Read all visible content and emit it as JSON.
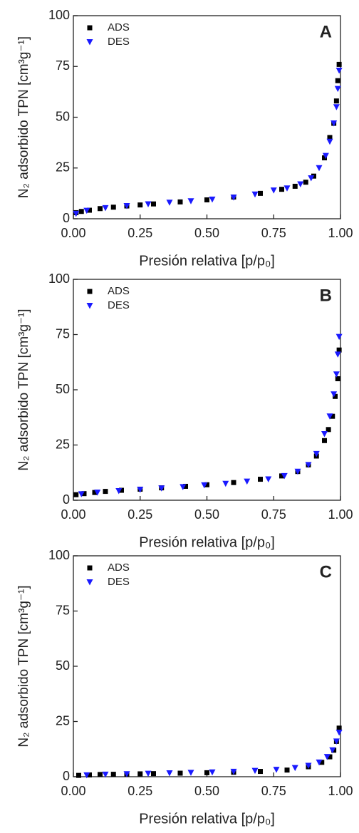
{
  "chart_data": [
    {
      "type": "scatter",
      "panel_label": "A",
      "x_label": "Presión relativa [p/p₀]",
      "y_label": "N₂ adsorbido TPN [cm³g⁻¹]",
      "xlim": [
        0,
        1
      ],
      "ylim": [
        0,
        100
      ],
      "xticks": [
        {
          "value": 0,
          "label": "0.00"
        },
        {
          "value": 0.25,
          "label": "0.25"
        },
        {
          "value": 0.5,
          "label": "0.50"
        },
        {
          "value": 0.75,
          "label": "0.75"
        },
        {
          "value": 1,
          "label": "1.00"
        }
      ],
      "yticks": [
        0,
        25,
        50,
        75,
        100
      ],
      "series": [
        {
          "name": "ADS",
          "color": "#000000",
          "marker": "square",
          "x": [
            0.01,
            0.03,
            0.06,
            0.1,
            0.15,
            0.2,
            0.25,
            0.3,
            0.4,
            0.5,
            0.6,
            0.7,
            0.78,
            0.83,
            0.87,
            0.9,
            0.94,
            0.96,
            0.975,
            0.985,
            0.99,
            0.995
          ],
          "values": [
            3,
            3.6,
            4.2,
            5,
            5.7,
            6.3,
            6.8,
            7.3,
            8.3,
            9.3,
            10.7,
            12.5,
            14.5,
            16,
            18,
            21,
            30,
            40,
            47,
            58,
            68,
            76
          ]
        },
        {
          "name": "DES",
          "color": "#1a1aff",
          "marker": "triangle-down",
          "x": [
            0.995,
            0.99,
            0.985,
            0.975,
            0.96,
            0.945,
            0.92,
            0.89,
            0.85,
            0.8,
            0.75,
            0.68,
            0.6,
            0.52,
            0.44,
            0.36,
            0.28,
            0.2,
            0.12,
            0.05,
            0.01
          ],
          "values": [
            73,
            64,
            55,
            47,
            38,
            31,
            25,
            20,
            17,
            15,
            14,
            12,
            10.5,
            9.5,
            8.7,
            8,
            7.2,
            6.3,
            5.3,
            4,
            2.5
          ]
        }
      ]
    },
    {
      "type": "scatter",
      "panel_label": "B",
      "x_label": "Presión relativa [p/p₀]",
      "y_label": "N₂ adsorbido TPN [cm³g⁻¹]",
      "xlim": [
        0,
        1
      ],
      "ylim": [
        0,
        100
      ],
      "xticks": [
        {
          "value": 0,
          "label": "0.00"
        },
        {
          "value": 0.25,
          "label": "0.25"
        },
        {
          "value": 0.5,
          "label": "0.50"
        },
        {
          "value": 0.75,
          "label": "0.75"
        },
        {
          "value": 1,
          "label": "1.00"
        }
      ],
      "yticks": [
        0,
        25,
        50,
        75,
        100
      ],
      "series": [
        {
          "name": "ADS",
          "color": "#000000",
          "marker": "square",
          "x": [
            0.01,
            0.04,
            0.08,
            0.12,
            0.18,
            0.25,
            0.33,
            0.42,
            0.5,
            0.6,
            0.7,
            0.78,
            0.84,
            0.88,
            0.91,
            0.94,
            0.955,
            0.97,
            0.98,
            0.99,
            0.995
          ],
          "values": [
            2.5,
            3,
            3.5,
            4,
            4.5,
            5,
            5.6,
            6.3,
            7,
            8,
            9.5,
            11,
            13,
            16,
            20,
            27,
            32,
            38,
            47,
            55,
            68
          ]
        },
        {
          "name": "DES",
          "color": "#1a1aff",
          "marker": "triangle-down",
          "x": [
            0.995,
            0.99,
            0.985,
            0.975,
            0.96,
            0.94,
            0.91,
            0.88,
            0.84,
            0.79,
            0.73,
            0.65,
            0.57,
            0.49,
            0.41,
            0.33,
            0.25,
            0.17,
            0.09,
            0.03
          ],
          "values": [
            74,
            66,
            57,
            48,
            38,
            30,
            21,
            16,
            13,
            11,
            9.5,
            8.5,
            7.5,
            6.8,
            6,
            5.4,
            4.8,
            4.2,
            3.5,
            2.8
          ]
        }
      ]
    },
    {
      "type": "scatter",
      "panel_label": "C",
      "x_label": "Presión relativa [p/p₀]",
      "y_label": "N₂ adsorbido TPN [cm³g⁻¹]",
      "xlim": [
        0,
        1
      ],
      "ylim": [
        0,
        100
      ],
      "xticks": [
        {
          "value": 0,
          "label": "0.00"
        },
        {
          "value": 0.25,
          "label": "0.25"
        },
        {
          "value": 0.5,
          "label": "0.50"
        },
        {
          "value": 0.75,
          "label": "0.75"
        },
        {
          "value": 1,
          "label": "1.00"
        }
      ],
      "yticks": [
        0,
        25,
        50,
        75,
        100
      ],
      "series": [
        {
          "name": "ADS",
          "color": "#000000",
          "marker": "square",
          "x": [
            0.02,
            0.06,
            0.1,
            0.15,
            0.2,
            0.25,
            0.3,
            0.4,
            0.5,
            0.6,
            0.7,
            0.8,
            0.88,
            0.93,
            0.96,
            0.975,
            0.985,
            0.995
          ],
          "values": [
            0.6,
            0.8,
            1,
            1.1,
            1.2,
            1.3,
            1.4,
            1.6,
            1.8,
            2,
            2.4,
            3,
            4.5,
            6.5,
            9,
            12,
            16,
            22
          ]
        },
        {
          "name": "DES",
          "color": "#1a1aff",
          "marker": "triangle-down",
          "x": [
            0.995,
            0.985,
            0.97,
            0.95,
            0.92,
            0.88,
            0.83,
            0.76,
            0.68,
            0.6,
            0.52,
            0.44,
            0.36,
            0.28,
            0.2,
            0.12,
            0.05
          ],
          "values": [
            20,
            16,
            12,
            9,
            6.5,
            5,
            4,
            3.2,
            2.7,
            2.3,
            2,
            1.8,
            1.6,
            1.4,
            1.2,
            1,
            0.7
          ]
        }
      ]
    }
  ]
}
